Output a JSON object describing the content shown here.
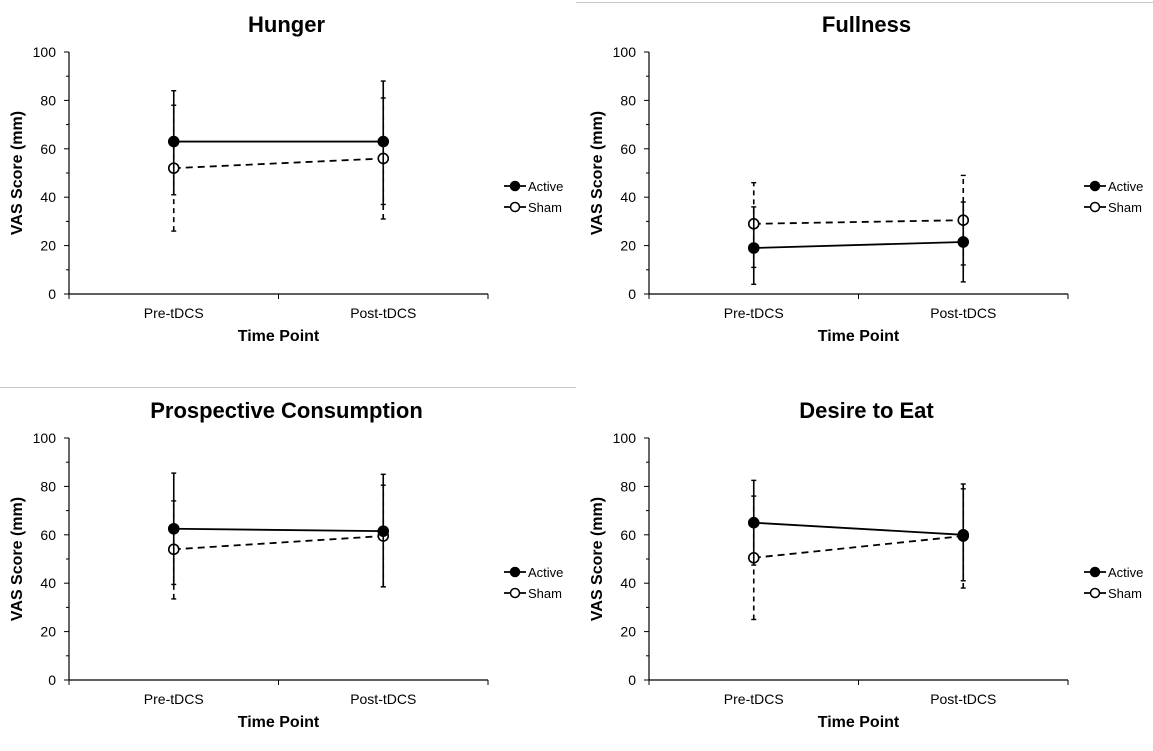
{
  "colors": {
    "line": "#000000",
    "background": "#ffffff",
    "divider": "#c8c8c8"
  },
  "chart_data": [
    {
      "type": "line",
      "title": "Hunger",
      "xlabel": "Time Point",
      "ylabel": "VAS Score (mm)",
      "categories": [
        "Pre-tDCS",
        "Post-tDCS"
      ],
      "ylim": [
        0,
        100
      ],
      "yticks": [
        "0",
        "20",
        "40",
        "60",
        "80",
        "100"
      ],
      "legend_position": "right",
      "series": [
        {
          "name": "Active",
          "style": "solid",
          "marker": "filled-circle",
          "values": [
            63,
            63
          ],
          "err_low": [
            41,
            37
          ],
          "err_high": [
            84,
            88
          ]
        },
        {
          "name": "Sham",
          "style": "dashed",
          "marker": "open-circle",
          "values": [
            52,
            56
          ],
          "err_low": [
            26,
            31
          ],
          "err_high": [
            78,
            81
          ]
        }
      ]
    },
    {
      "type": "line",
      "title": "Fullness",
      "xlabel": "Time Point",
      "ylabel": "VAS Score (mm)",
      "categories": [
        "Pre-tDCS",
        "Post-tDCS"
      ],
      "ylim": [
        0,
        100
      ],
      "yticks": [
        "0",
        "20",
        "40",
        "60",
        "80",
        "100"
      ],
      "legend_position": "right",
      "series": [
        {
          "name": "Active",
          "style": "solid",
          "marker": "filled-circle",
          "values": [
            19,
            21.5
          ],
          "err_low": [
            4,
            5
          ],
          "err_high": [
            36,
            38
          ]
        },
        {
          "name": "Sham",
          "style": "dashed",
          "marker": "open-circle",
          "values": [
            29,
            30.5
          ],
          "err_low": [
            11,
            12
          ],
          "err_high": [
            46,
            49
          ]
        }
      ]
    },
    {
      "type": "line",
      "title": "Prospective Consumption",
      "xlabel": "Time Point",
      "ylabel": "VAS Score (mm)",
      "categories": [
        "Pre-tDCS",
        "Post-tDCS"
      ],
      "ylim": [
        0,
        100
      ],
      "yticks": [
        "0",
        "20",
        "40",
        "60",
        "80",
        "100"
      ],
      "legend_position": "right",
      "series": [
        {
          "name": "Active",
          "style": "solid",
          "marker": "filled-circle",
          "values": [
            62.5,
            61.5
          ],
          "err_low": [
            39.5,
            38.5
          ],
          "err_high": [
            85.5,
            85
          ]
        },
        {
          "name": "Sham",
          "style": "dashed",
          "marker": "open-circle",
          "values": [
            54,
            59.5
          ],
          "err_low": [
            33.5,
            38.5
          ],
          "err_high": [
            74,
            80.5
          ]
        }
      ]
    },
    {
      "type": "line",
      "title": "Desire to Eat",
      "xlabel": "Time Point",
      "ylabel": "VAS Score (mm)",
      "categories": [
        "Pre-tDCS",
        "Post-tDCS"
      ],
      "ylim": [
        0,
        100
      ],
      "yticks": [
        "0",
        "20",
        "40",
        "60",
        "80",
        "100"
      ],
      "legend_position": "right",
      "series": [
        {
          "name": "Active",
          "style": "solid",
          "marker": "filled-circle",
          "values": [
            65,
            60
          ],
          "err_low": [
            47.5,
            41
          ],
          "err_high": [
            82.5,
            79
          ]
        },
        {
          "name": "Sham",
          "style": "dashed",
          "marker": "open-circle",
          "values": [
            50.5,
            59.5
          ],
          "err_low": [
            25,
            38
          ],
          "err_high": [
            76,
            81
          ]
        }
      ]
    }
  ]
}
